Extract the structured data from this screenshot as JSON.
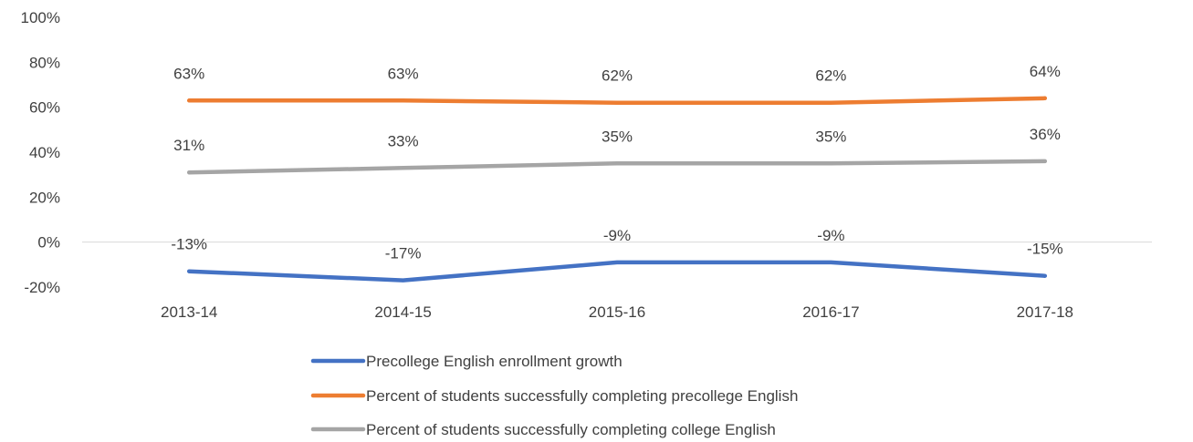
{
  "chart_data": {
    "type": "line",
    "categories": [
      "2013-14",
      "2014-15",
      "2015-16",
      "2016-17",
      "2017-18"
    ],
    "ylim": [
      -20,
      100
    ],
    "y_ticks": [
      -20,
      0,
      20,
      40,
      60,
      80,
      100
    ],
    "y_tick_labels": [
      "-20%",
      "0%",
      "20%",
      "40%",
      "60%",
      "80%",
      "100%"
    ],
    "grid": false,
    "zero_line": true,
    "legend_position": "bottom",
    "series": [
      {
        "name": "Precollege English enrollment growth",
        "values": [
          -13,
          -17,
          -9,
          -9,
          -15
        ],
        "labels": [
          "-13%",
          "-17%",
          "-9%",
          "-9%",
          "-15%"
        ],
        "color": "#4472C4"
      },
      {
        "name": "Percent of students successfully completing precollege English",
        "values": [
          63,
          63,
          62,
          62,
          64
        ],
        "labels": [
          "63%",
          "63%",
          "62%",
          "62%",
          "64%"
        ],
        "color": "#ED7D31"
      },
      {
        "name": "Percent of students successfully completing college English",
        "values": [
          31,
          33,
          35,
          35,
          36
        ],
        "labels": [
          "31%",
          "33%",
          "35%",
          "35%",
          "36%"
        ],
        "color": "#A5A5A5"
      }
    ]
  }
}
